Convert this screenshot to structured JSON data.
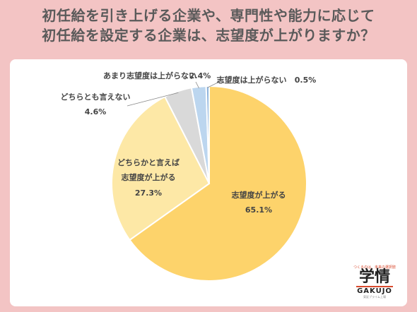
{
  "title_lines": [
    "初任給を引き上げる企業や、専門性や能力に応じて",
    "初任給を設定する企業は、志望度が上がりますか？"
  ],
  "logo": {
    "tagline": "つくるのは、未来の選択肢",
    "kanji": "学情",
    "roman": "GAKUJO",
    "sub": "東証プライム上場"
  },
  "chart_data": {
    "type": "pie",
    "title": "初任給を引き上げる企業や、専門性や能力に応じて初任給を設定する企業は、志望度が上がりますか？",
    "slices": [
      {
        "label": "志望度が上がる",
        "value": 65.1,
        "value_text": "65.1%",
        "color": "#fdd36b"
      },
      {
        "label": "どちらかと言えば志望度が上がる",
        "value": 27.3,
        "value_text": "27.3%",
        "color": "#fde8a6"
      },
      {
        "label": "どちらとも言えない",
        "value": 4.6,
        "value_text": "4.6%",
        "color": "#d9d9d9"
      },
      {
        "label": "あまり志望度は上がらない",
        "value": 2.4,
        "value_text": "2.4%",
        "color": "#bcd6ef"
      },
      {
        "label": "志望度は上がらない",
        "value": 0.5,
        "value_text": "0.5%",
        "color": "#8fb4dc"
      }
    ]
  }
}
